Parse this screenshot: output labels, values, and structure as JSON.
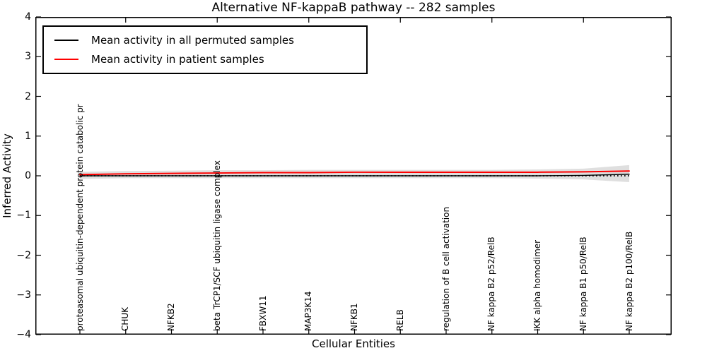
{
  "figure": {
    "title": "Alternative NF-kappaB pathway -- 282 samples",
    "xlabel": "Cellular Entities",
    "ylabel": "Inferred Activity"
  },
  "legend": {
    "position": "upper left",
    "entries": [
      {
        "label": "Mean activity in all permuted samples",
        "color": "#000000"
      },
      {
        "label": "Mean activity in patient samples",
        "color": "#ff0000"
      }
    ]
  },
  "chart_data": {
    "type": "line",
    "title": "Alternative NF-kappaB pathway -- 282 samples",
    "xlabel": "Cellular Entities",
    "ylabel": "Inferred Activity",
    "ylim": [
      -4,
      4
    ],
    "ytick_values": [
      4,
      3,
      2,
      1,
      0,
      -1,
      -2,
      -3,
      -4
    ],
    "ytick_labels": [
      "4",
      "3",
      "2",
      "1",
      "0",
      "−1",
      "−2",
      "−3",
      "−4"
    ],
    "categories": [
      "proteasomal ubiquitin-dependent protein catabolic pr",
      "CHUK",
      "NFKB2",
      "beta TrCP1/SCF ubiquitin ligase complex",
      "FBXW11",
      "MAP3K14",
      "NFKB1",
      "RELB",
      "regulation of B cell activation",
      "NF kappa B2 p52/RelB",
      "IKK alpha homodimer",
      "NF kappa B1 p50/RelB",
      "NF kappa B2 p100/RelB"
    ],
    "series": [
      {
        "name": "Mean activity in all permuted samples",
        "color": "#000000",
        "style": "solid",
        "values": [
          0.0,
          0.0,
          0.0,
          0.0,
          0.0,
          0.0,
          0.0,
          0.0,
          0.0,
          0.0,
          0.0,
          0.01,
          0.04
        ]
      },
      {
        "name": "Mean activity in patient samples",
        "color": "#ff0000",
        "style": "solid",
        "values": [
          0.03,
          0.05,
          0.06,
          0.07,
          0.08,
          0.08,
          0.09,
          0.09,
          0.09,
          0.09,
          0.09,
          0.1,
          0.12
        ]
      }
    ],
    "band": {
      "color": "#d9d9d9",
      "upper": [
        0.1,
        0.12,
        0.13,
        0.14,
        0.14,
        0.15,
        0.15,
        0.15,
        0.15,
        0.15,
        0.16,
        0.18,
        0.27
      ],
      "lower": [
        -0.08,
        -0.06,
        -0.06,
        -0.06,
        -0.06,
        -0.06,
        -0.06,
        -0.06,
        -0.06,
        -0.06,
        -0.07,
        -0.09,
        -0.16
      ]
    },
    "zero_line": {
      "value": 0,
      "color": "#000000",
      "style": "dotted"
    },
    "grid": false,
    "legend_position": "upper left"
  }
}
